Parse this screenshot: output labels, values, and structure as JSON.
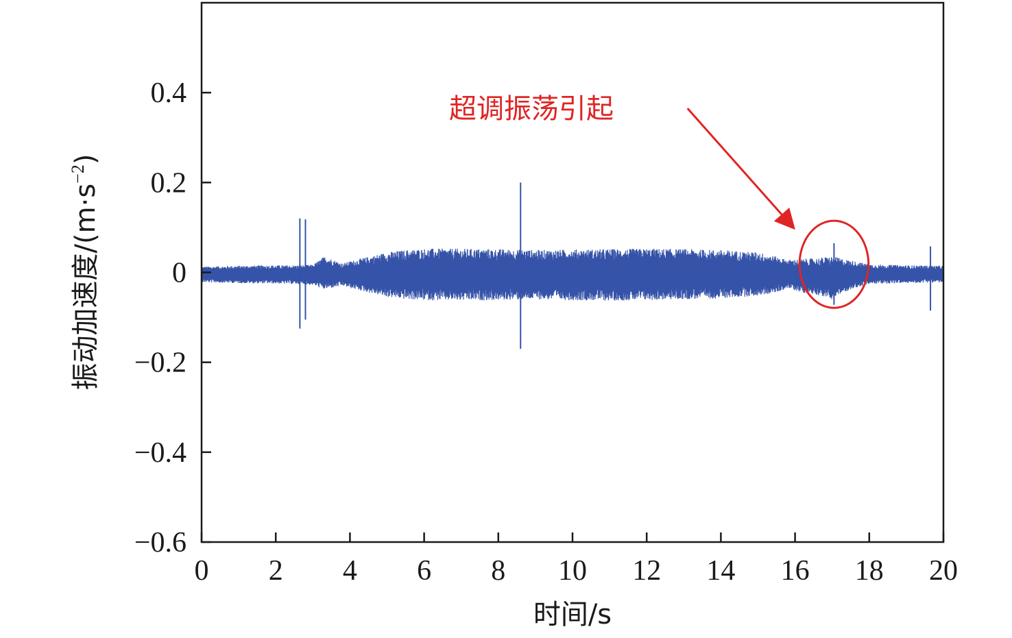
{
  "chart_data": {
    "type": "line",
    "title": "",
    "xlabel": "时间/s",
    "ylabel": "振动加速度/(m·s⁻²)",
    "ylabel_parts": {
      "base": "振动加速度/(m·s",
      "exponent": "−2",
      "close": ")"
    },
    "xlim": [
      0,
      20
    ],
    "ylim": [
      -0.6,
      0.6
    ],
    "xticks": [
      0,
      2,
      4,
      6,
      8,
      10,
      12,
      14,
      16,
      18,
      20
    ],
    "xtick_labels": [
      "0",
      "2",
      "4",
      "6",
      "8",
      "10",
      "12",
      "14",
      "16",
      "18",
      "20"
    ],
    "yticks": [
      -0.6,
      -0.4,
      -0.2,
      0,
      0.2,
      0.4
    ],
    "ytick_labels": [
      "−0.6",
      "−0.4",
      "−0.2",
      "0",
      "0.2",
      "0.4"
    ],
    "grid": false,
    "line_color": "#3553a8",
    "series": [
      {
        "envelope": {
          "x": [
            0,
            1,
            2,
            2.5,
            3.0,
            3.3,
            3.5,
            3.8,
            4.0,
            4.5,
            5.0,
            5.5,
            6.0,
            7.0,
            8.0,
            9.0,
            10.0,
            11.0,
            12.0,
            13.0,
            14.0,
            15.0,
            15.5,
            15.8,
            16.2,
            16.6,
            17.0,
            17.3,
            17.6,
            18.0,
            19.0,
            20.0
          ],
          "upper": [
            0.013,
            0.015,
            0.016,
            0.016,
            0.017,
            0.035,
            0.03,
            0.02,
            0.025,
            0.035,
            0.045,
            0.05,
            0.053,
            0.053,
            0.052,
            0.05,
            0.051,
            0.052,
            0.053,
            0.052,
            0.05,
            0.045,
            0.035,
            0.028,
            0.03,
            0.032,
            0.036,
            0.03,
            0.025,
            0.018,
            0.016,
            0.015
          ],
          "lower": [
            -0.022,
            -0.024,
            -0.025,
            -0.026,
            -0.028,
            -0.038,
            -0.035,
            -0.03,
            -0.035,
            -0.045,
            -0.055,
            -0.06,
            -0.062,
            -0.063,
            -0.062,
            -0.06,
            -0.062,
            -0.063,
            -0.062,
            -0.06,
            -0.058,
            -0.052,
            -0.045,
            -0.035,
            -0.045,
            -0.05,
            -0.06,
            -0.045,
            -0.035,
            -0.026,
            -0.024,
            -0.022
          ]
        },
        "spikes": [
          {
            "x": 2.65,
            "max": 0.12,
            "min": -0.125
          },
          {
            "x": 2.8,
            "max": 0.118,
            "min": -0.105
          },
          {
            "x": 8.6,
            "max": 0.2,
            "min": -0.17
          },
          {
            "x": 17.05,
            "max": 0.065,
            "min": -0.072
          },
          {
            "x": 19.65,
            "max": 0.058,
            "min": -0.085
          }
        ]
      }
    ],
    "annotations": [
      {
        "text": "超调振荡引起",
        "color": "#e02424",
        "arrow_from": {
          "x": 13.1,
          "y": 0.365
        },
        "arrow_to": {
          "x": 15.95,
          "y": 0.1
        },
        "ellipse": {
          "cx": 17.05,
          "cy": 0.018,
          "rx": 0.93,
          "ry": 0.097
        }
      }
    ]
  }
}
